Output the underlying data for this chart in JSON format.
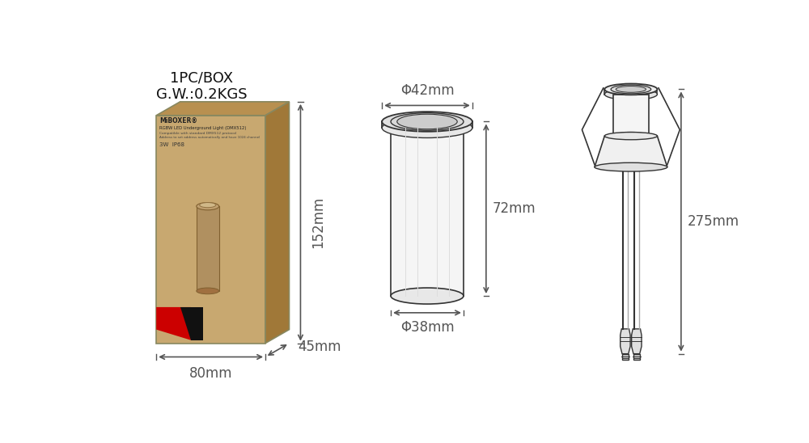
{
  "bg_color": "#ffffff",
  "title_text": "1PC/BOX\nG.W.:0.2KGS",
  "title_fontsize": 13,
  "label_fontsize": 12,
  "dim_color": "#555555",
  "line_color": "#333333",
  "box_color": "#c8a870",
  "box_side_color": "#a07838",
  "box_top_color": "#b89050",
  "box_edge_color": "#888860",
  "diagram_color": "#888888",
  "dims": {
    "box_width_label": "80mm",
    "box_depth_label": "45mm",
    "box_height_label": "152mm",
    "light_top_dia_label": "Φ42mm",
    "light_bot_dia_label": "Φ38mm",
    "light_height_label": "72mm",
    "cable_total_label": "275mm"
  }
}
